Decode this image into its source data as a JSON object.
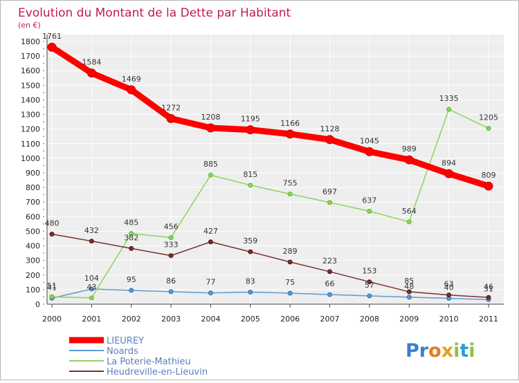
{
  "chart_data": {
    "type": "line",
    "title": "Evolution du Montant de la Dette par Habitant",
    "subtitle": "(en €)",
    "xlabel": "",
    "ylabel": "",
    "categories": [
      "2000",
      "2001",
      "2002",
      "2003",
      "2004",
      "2005",
      "2006",
      "2007",
      "2008",
      "2009",
      "2010",
      "2011"
    ],
    "ylim": [
      0,
      1800
    ],
    "yticks": [
      0,
      100,
      200,
      300,
      400,
      500,
      600,
      700,
      800,
      900,
      1000,
      1100,
      1200,
      1300,
      1400,
      1500,
      1600,
      1700,
      1800
    ],
    "grid": true,
    "legend_position": "bottom-left",
    "series": [
      {
        "name": "LIEUREY",
        "color": "#ff0000",
        "values": [
          1761,
          1584,
          1469,
          1272,
          1208,
          1195,
          1166,
          1128,
          1045,
          989,
          894,
          809
        ]
      },
      {
        "name": "Noards",
        "color": "#5b9bd5",
        "values": [
          41,
          104,
          95,
          86,
          77,
          83,
          75,
          66,
          57,
          48,
          40,
          31
        ]
      },
      {
        "name": "La Poterie-Mathieu",
        "color": "#8ed35a",
        "values": [
          51,
          43,
          485,
          456,
          885,
          815,
          755,
          697,
          637,
          564,
          1335,
          1205
        ]
      },
      {
        "name": "Heudreville-en-Lieuvin",
        "color": "#7a2e2e",
        "values": [
          480,
          432,
          382,
          333,
          427,
          359,
          289,
          223,
          153,
          85,
          63,
          46
        ]
      }
    ]
  },
  "logo": {
    "text": "Proxiti",
    "letters": [
      "P",
      "r",
      "o",
      "x",
      "i",
      "t",
      "i"
    ],
    "colors": [
      "#3a7fd0",
      "#3a7fd0",
      "#e57a1f",
      "#e2a21c",
      "#8bc34a",
      "#2aa0c8",
      "#8bc34a"
    ]
  }
}
